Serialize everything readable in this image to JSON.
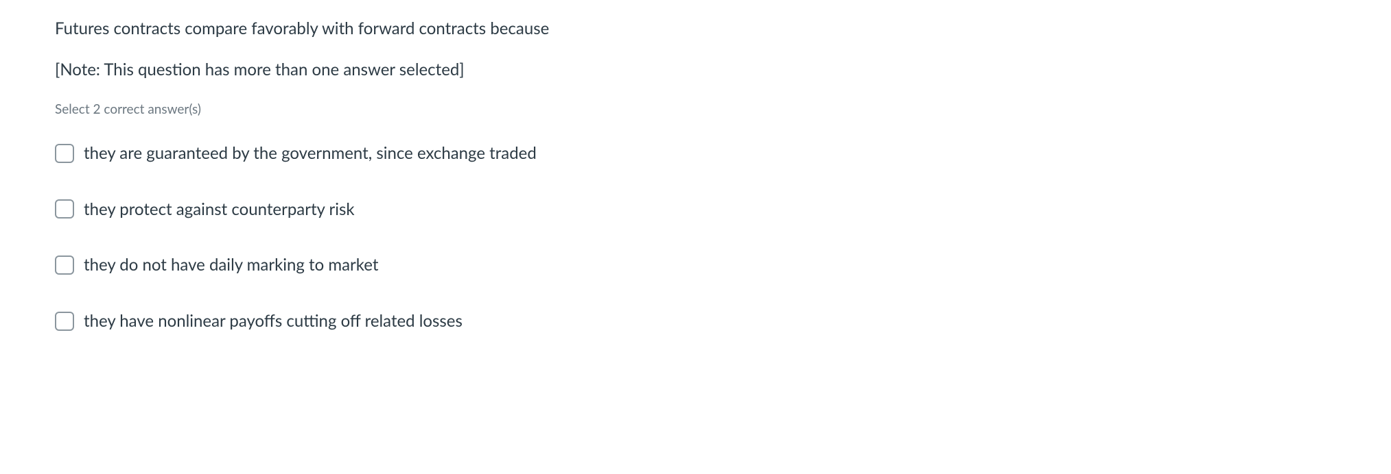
{
  "question": {
    "text": "Futures contracts compare favorably with forward contracts because",
    "note": "[Note: This question has more than one answer selected]",
    "instruction": "Select 2 correct answer(s)"
  },
  "options": [
    {
      "label": "they are guaranteed by the government, since exchange traded"
    },
    {
      "label": "they protect against counterparty risk"
    },
    {
      "label": "they do not have daily marking to market"
    },
    {
      "label": "they have nonlinear payoffs cutting off related losses"
    }
  ],
  "styles": {
    "text_color": "#2d3b45",
    "instruction_color": "#6b7780",
    "checkbox_border": "#8b969e",
    "background": "#ffffff",
    "question_fontsize": 24,
    "instruction_fontsize": 19,
    "option_fontsize": 24
  }
}
